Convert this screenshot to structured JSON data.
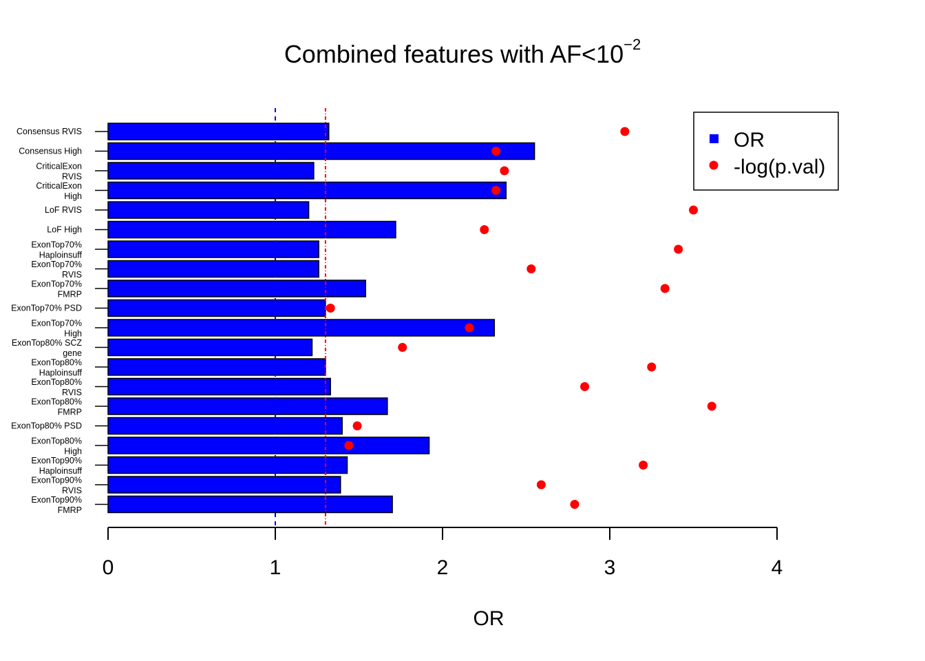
{
  "chart_data": {
    "type": "bar",
    "orientation": "horizontal",
    "title_prefix": "Combined features with AF<10",
    "title_superscript": "−2",
    "xlabel": "OR",
    "ylabel": "",
    "xlim": [
      0,
      4
    ],
    "x_ticks": [
      "0",
      "1",
      "2",
      "3",
      "4"
    ],
    "categories": [
      [
        "Consensus RVIS"
      ],
      [
        "Consensus High"
      ],
      [
        "CriticalExon",
        "RVIS"
      ],
      [
        "CriticalExon",
        "High"
      ],
      [
        "LoF RVIS"
      ],
      [
        "LoF High"
      ],
      [
        "ExonTop70%",
        "Haploinsuff"
      ],
      [
        "ExonTop70%",
        "RVIS"
      ],
      [
        "ExonTop70%",
        "FMRP"
      ],
      [
        "ExonTop70% PSD"
      ],
      [
        "ExonTop70%",
        "High"
      ],
      [
        "ExonTop80% SCZ",
        "gene"
      ],
      [
        "ExonTop80%",
        "Haploinsuff"
      ],
      [
        "ExonTop80%",
        "RVIS"
      ],
      [
        "ExonTop80%",
        "FMRP"
      ],
      [
        "ExonTop80% PSD"
      ],
      [
        "ExonTop80%",
        "High"
      ],
      [
        "ExonTop90%",
        "Haploinsuff"
      ],
      [
        "ExonTop90%",
        "RVIS"
      ],
      [
        "ExonTop90%",
        "FMRP"
      ]
    ],
    "series": [
      {
        "name": "OR",
        "mark": "bar",
        "color": "#0000ff",
        "values": [
          1.32,
          2.55,
          1.23,
          2.38,
          1.2,
          1.72,
          1.26,
          1.26,
          1.54,
          1.3,
          2.31,
          1.22,
          1.3,
          1.33,
          1.67,
          1.4,
          1.92,
          1.43,
          1.39,
          1.7
        ]
      },
      {
        "name": "-log(p.val)",
        "mark": "point",
        "color": "#ff0000",
        "values": [
          3.09,
          2.32,
          2.37,
          2.32,
          3.5,
          2.25,
          3.41,
          2.53,
          3.33,
          1.33,
          2.16,
          1.76,
          3.25,
          2.85,
          3.61,
          1.49,
          1.44,
          3.2,
          2.59,
          2.79
        ]
      }
    ],
    "reference_lines": [
      {
        "value": 1.0,
        "color": "#0000ff",
        "style": "dashed"
      },
      {
        "value": 1.3,
        "color": "#ff0000",
        "style": "dashed"
      }
    ],
    "legend_position": "top-right",
    "grid": false
  }
}
